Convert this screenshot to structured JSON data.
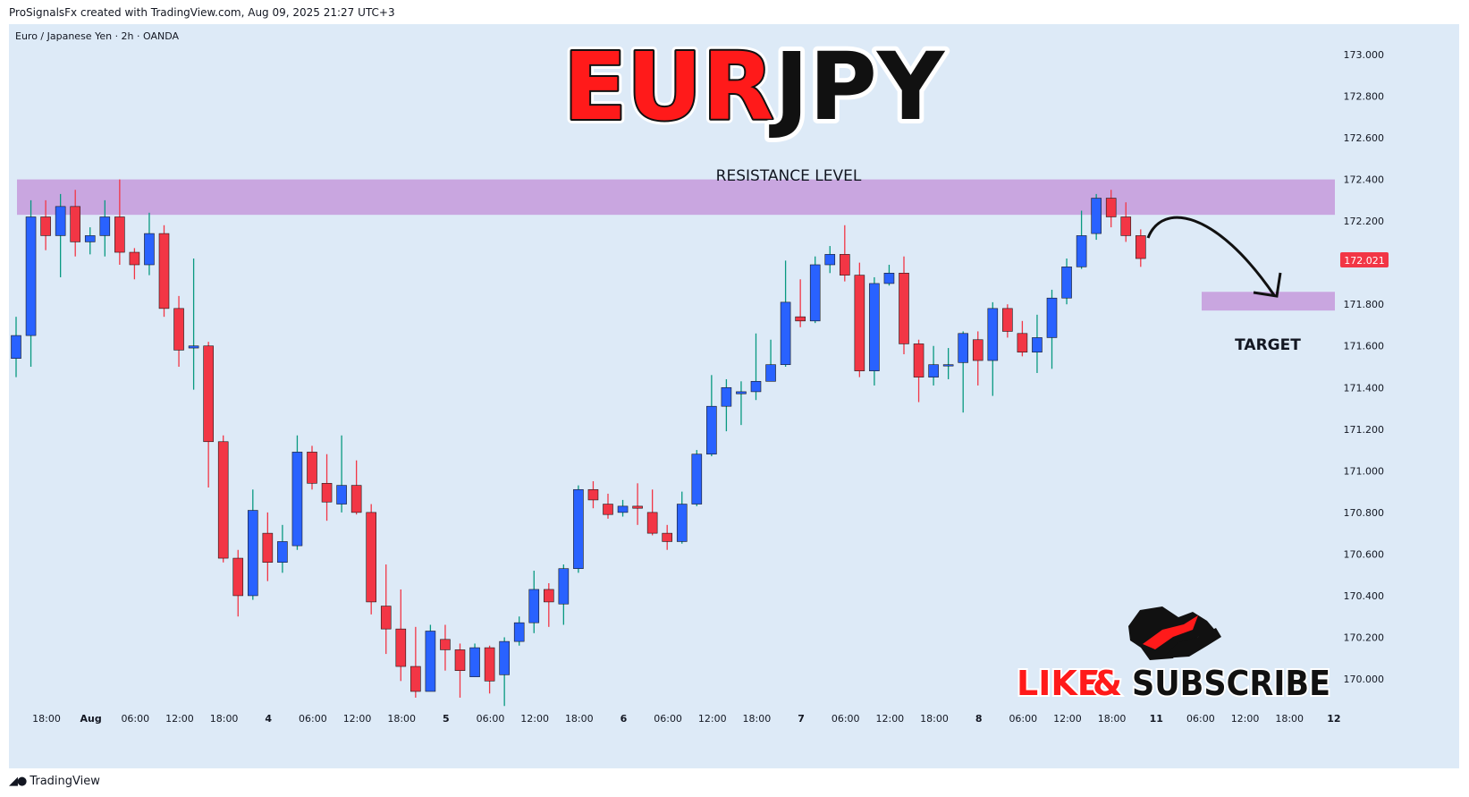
{
  "header": {
    "credit": "ProSignalsFx created with TradingView.com, Aug 09, 2025 21:27 UTC+3"
  },
  "footer": {
    "brand": "TradingView",
    "logo_icon": "tradingview-logo-icon"
  },
  "overlay": {
    "title_part1": "EUR",
    "title_part2": "JPY",
    "resistance_label": "RESISTANCE LEVEL",
    "target_label": "TARGET",
    "cta_like": "LIKE",
    "cta_amp": "&",
    "cta_subscribe": "SUBSCRIBE",
    "cta_icon": "bull-vs-bear-icon",
    "arrow_icon": "curved-arrow-down-icon"
  },
  "colors": {
    "background": "#ddeaf7",
    "up_candle": "#2962ff",
    "down_candle": "#f23645",
    "wick_up": "#089981",
    "zone": "#c9a6e0",
    "title_red": "#ff1a1a",
    "title_black": "#111111",
    "price_badge": "#f23645"
  },
  "chart_data": {
    "type": "candlestick",
    "symbol_label": "Euro / Japanese Yen · 2h · OANDA",
    "last_price": "172.021",
    "ylim": [
      169.88,
      173.2
    ],
    "y_ticks": [
      "173.000",
      "172.800",
      "172.600",
      "172.400",
      "172.200",
      "172.000",
      "171.800",
      "171.600",
      "171.400",
      "171.200",
      "171.000",
      "170.800",
      "170.600",
      "170.400",
      "170.200",
      "170.000"
    ],
    "x_ticks": [
      "18:00",
      "Aug",
      "06:00",
      "12:00",
      "18:00",
      "4",
      "06:00",
      "12:00",
      "18:00",
      "5",
      "06:00",
      "12:00",
      "18:00",
      "6",
      "06:00",
      "12:00",
      "18:00",
      "7",
      "06:00",
      "12:00",
      "18:00",
      "8",
      "06:00",
      "12:00",
      "18:00",
      "11",
      "06:00",
      "12:00",
      "18:00",
      "12"
    ],
    "resistance_zone": [
      172.23,
      172.4
    ],
    "target_zone": [
      171.77,
      171.86
    ],
    "candles": [
      [
        171.54,
        171.65,
        171.45,
        171.74
      ],
      [
        171.65,
        172.22,
        171.5,
        172.3
      ],
      [
        172.22,
        172.13,
        172.06,
        172.3
      ],
      [
        172.13,
        172.27,
        171.93,
        172.33
      ],
      [
        172.27,
        172.1,
        172.03,
        172.35
      ],
      [
        172.1,
        172.13,
        172.04,
        172.17
      ],
      [
        172.13,
        172.22,
        172.03,
        172.3
      ],
      [
        172.22,
        172.05,
        171.99,
        172.4
      ],
      [
        172.05,
        171.99,
        171.92,
        172.07
      ],
      [
        171.99,
        172.14,
        171.94,
        172.24
      ],
      [
        172.14,
        171.78,
        171.74,
        172.18
      ],
      [
        171.78,
        171.58,
        171.5,
        171.84
      ],
      [
        171.59,
        171.6,
        171.39,
        172.02
      ],
      [
        171.6,
        171.14,
        170.92,
        171.62
      ],
      [
        171.14,
        170.58,
        170.56,
        171.17
      ],
      [
        170.58,
        170.4,
        170.3,
        170.62
      ],
      [
        170.4,
        170.81,
        170.38,
        170.91
      ],
      [
        170.7,
        170.56,
        170.47,
        170.8
      ],
      [
        170.56,
        170.66,
        170.51,
        170.74
      ],
      [
        170.64,
        171.09,
        170.62,
        171.17
      ],
      [
        171.09,
        170.94,
        170.91,
        171.12
      ],
      [
        170.94,
        170.85,
        170.76,
        171.08
      ],
      [
        170.84,
        170.93,
        170.8,
        171.17
      ],
      [
        170.93,
        170.8,
        170.79,
        171.05
      ],
      [
        170.8,
        170.37,
        170.31,
        170.84
      ],
      [
        170.35,
        170.24,
        170.12,
        170.55
      ],
      [
        170.24,
        170.06,
        169.99,
        170.43
      ],
      [
        170.06,
        169.94,
        169.91,
        170.25
      ],
      [
        169.94,
        170.23,
        169.94,
        170.26
      ],
      [
        170.19,
        170.14,
        170.04,
        170.26
      ],
      [
        170.14,
        170.04,
        169.91,
        170.17
      ],
      [
        170.01,
        170.15,
        170.01,
        170.17
      ],
      [
        170.15,
        169.99,
        169.93,
        170.16
      ],
      [
        170.02,
        170.18,
        169.87,
        170.2
      ],
      [
        170.18,
        170.27,
        170.16,
        170.3
      ],
      [
        170.27,
        170.43,
        170.22,
        170.52
      ],
      [
        170.43,
        170.37,
        170.25,
        170.46
      ],
      [
        170.36,
        170.53,
        170.26,
        170.55
      ],
      [
        170.53,
        170.91,
        170.51,
        170.93
      ],
      [
        170.91,
        170.86,
        170.82,
        170.95
      ],
      [
        170.84,
        170.79,
        170.77,
        170.89
      ],
      [
        170.8,
        170.83,
        170.78,
        170.86
      ],
      [
        170.83,
        170.82,
        170.74,
        170.94
      ],
      [
        170.8,
        170.7,
        170.69,
        170.91
      ],
      [
        170.7,
        170.66,
        170.62,
        170.74
      ],
      [
        170.66,
        170.84,
        170.65,
        170.9
      ],
      [
        170.84,
        171.08,
        170.83,
        171.1
      ],
      [
        171.08,
        171.31,
        171.07,
        171.46
      ],
      [
        171.31,
        171.4,
        171.19,
        171.44
      ],
      [
        171.37,
        171.38,
        171.22,
        171.43
      ],
      [
        171.38,
        171.43,
        171.34,
        171.66
      ],
      [
        171.43,
        171.51,
        171.43,
        171.63
      ],
      [
        171.51,
        171.81,
        171.5,
        172.01
      ],
      [
        171.74,
        171.72,
        171.69,
        171.92
      ],
      [
        171.72,
        171.99,
        171.71,
        172.03
      ],
      [
        171.99,
        172.04,
        171.95,
        172.08
      ],
      [
        172.04,
        171.94,
        171.91,
        172.18
      ],
      [
        171.94,
        171.48,
        171.45,
        172.0
      ],
      [
        171.48,
        171.9,
        171.41,
        171.93
      ],
      [
        171.9,
        171.95,
        171.89,
        171.99
      ],
      [
        171.95,
        171.61,
        171.56,
        172.03
      ],
      [
        171.61,
        171.45,
        171.33,
        171.63
      ],
      [
        171.45,
        171.51,
        171.41,
        171.6
      ],
      [
        171.51,
        171.51,
        171.44,
        171.59
      ],
      [
        171.52,
        171.66,
        171.28,
        171.67
      ],
      [
        171.63,
        171.53,
        171.41,
        171.67
      ],
      [
        171.53,
        171.78,
        171.36,
        171.81
      ],
      [
        171.78,
        171.67,
        171.64,
        171.8
      ],
      [
        171.66,
        171.57,
        171.55,
        171.72
      ],
      [
        171.57,
        171.64,
        171.47,
        171.75
      ],
      [
        171.64,
        171.83,
        171.49,
        171.87
      ],
      [
        171.83,
        171.98,
        171.8,
        172.02
      ],
      [
        171.98,
        172.13,
        171.97,
        172.25
      ],
      [
        172.14,
        172.31,
        172.11,
        172.33
      ],
      [
        172.31,
        172.22,
        172.17,
        172.35
      ],
      [
        172.22,
        172.13,
        172.1,
        172.29
      ],
      [
        172.13,
        172.02,
        171.98,
        172.16
      ]
    ]
  }
}
